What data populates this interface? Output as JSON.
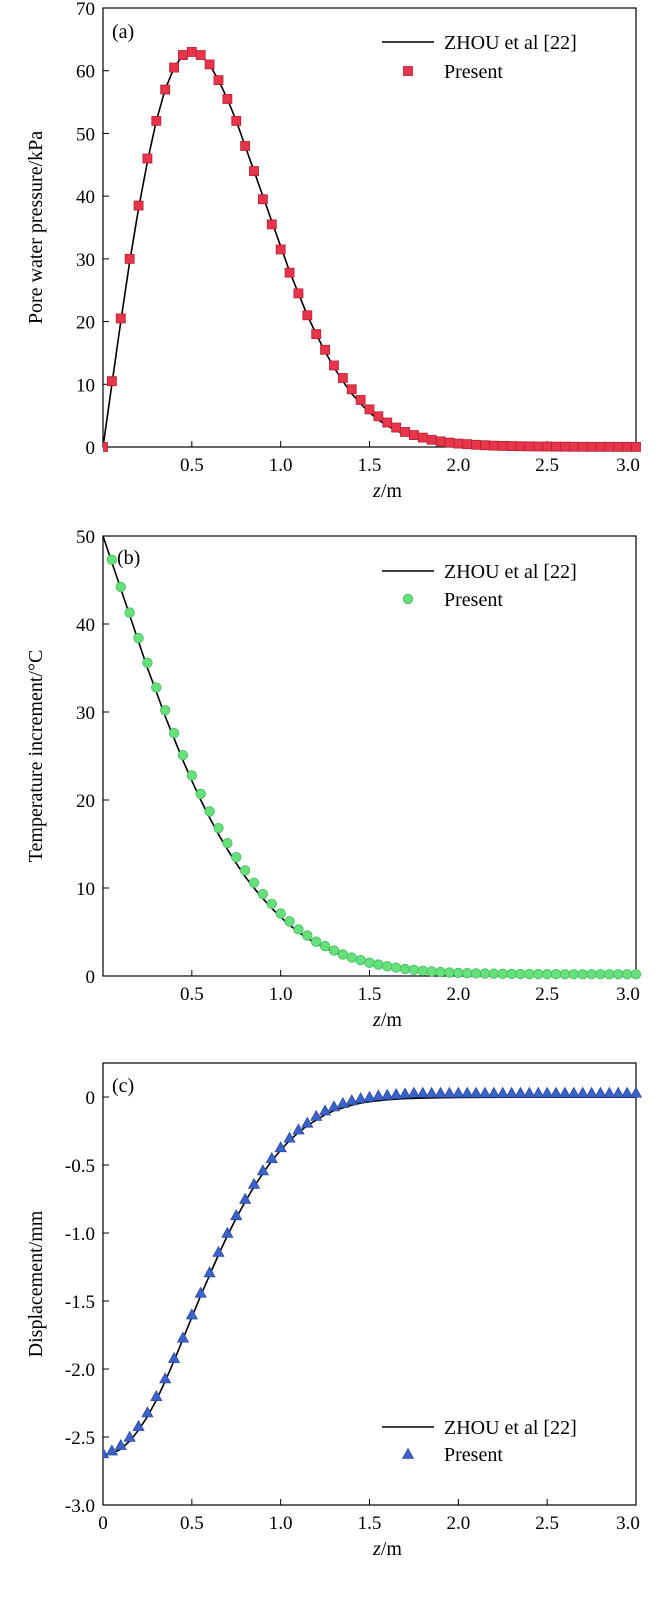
{
  "chart_data": [
    {
      "type": "line",
      "panel": "(a)",
      "xlabel_var": "z",
      "xlabel_unit": "/m",
      "ylabel": "Pore water pressure/kPa",
      "xlim": [
        0,
        3.0
      ],
      "ylim": [
        0,
        70
      ],
      "xticks": [
        0.5,
        1.0,
        1.5,
        2.0,
        2.5,
        3.0
      ],
      "xtick_labels": [
        "0.5",
        "1.0",
        "1.5",
        "2.0",
        "2.5",
        "3.0"
      ],
      "yticks": [
        0,
        10,
        20,
        30,
        40,
        50,
        60,
        70
      ],
      "ytick_labels": [
        "0",
        "10",
        "20",
        "30",
        "40",
        "50",
        "60",
        "70"
      ],
      "legend_position": "top-right",
      "series": [
        {
          "name": "ZHOU et al [22]",
          "style": "line",
          "color": "#000000",
          "x": [
            0,
            0.05,
            0.1,
            0.15,
            0.2,
            0.25,
            0.3,
            0.35,
            0.4,
            0.45,
            0.5,
            0.55,
            0.6,
            0.65,
            0.7,
            0.75,
            0.8,
            0.85,
            0.9,
            0.95,
            1.0,
            1.05,
            1.1,
            1.15,
            1.2,
            1.25,
            1.3,
            1.35,
            1.4,
            1.45,
            1.5,
            1.55,
            1.6,
            1.65,
            1.7,
            1.75,
            1.8,
            1.85,
            1.9,
            1.95,
            2.0,
            2.1,
            2.2,
            2.3,
            2.4,
            2.5,
            2.6,
            2.7,
            2.8,
            2.9,
            3.0
          ],
          "y": [
            0,
            10.0,
            20.0,
            29.5,
            38.0,
            45.5,
            52.0,
            57.0,
            60.5,
            62.5,
            63.0,
            62.5,
            61.0,
            58.5,
            55.5,
            52.0,
            48.0,
            44.0,
            40.0,
            36.0,
            32.0,
            28.0,
            24.5,
            21.0,
            18.0,
            15.2,
            12.7,
            10.5,
            8.5,
            6.9,
            5.5,
            4.3,
            3.4,
            2.6,
            2.0,
            1.5,
            1.15,
            0.85,
            0.65,
            0.5,
            0.35,
            0.2,
            0.12,
            0.08,
            0.05,
            0.03,
            0.02,
            0.01,
            0.01,
            0.01,
            0
          ]
        },
        {
          "name": "Present",
          "style": "marker",
          "marker": "square",
          "color": "#e8354a",
          "x": [
            0,
            0.05,
            0.1,
            0.15,
            0.2,
            0.25,
            0.3,
            0.35,
            0.4,
            0.45,
            0.5,
            0.55,
            0.6,
            0.65,
            0.7,
            0.75,
            0.8,
            0.85,
            0.9,
            0.95,
            1.0,
            1.05,
            1.1,
            1.15,
            1.2,
            1.25,
            1.3,
            1.35,
            1.4,
            1.45,
            1.5,
            1.55,
            1.6,
            1.65,
            1.7,
            1.75,
            1.8,
            1.85,
            1.9,
            1.95,
            2.0,
            2.05,
            2.1,
            2.15,
            2.2,
            2.25,
            2.3,
            2.35,
            2.4,
            2.45,
            2.5,
            2.55,
            2.6,
            2.65,
            2.7,
            2.75,
            2.8,
            2.85,
            2.9,
            2.95,
            3.0
          ],
          "y": [
            0,
            10.5,
            20.5,
            30.0,
            38.5,
            46.0,
            52.0,
            57.0,
            60.5,
            62.5,
            63.0,
            62.5,
            61.0,
            58.5,
            55.5,
            52.0,
            48.0,
            44.0,
            39.5,
            35.5,
            31.5,
            27.8,
            24.5,
            21.0,
            18.0,
            15.5,
            13.0,
            11.0,
            9.2,
            7.5,
            6.0,
            4.9,
            3.9,
            3.1,
            2.4,
            1.9,
            1.5,
            1.15,
            0.9,
            0.7,
            0.55,
            0.45,
            0.35,
            0.28,
            0.22,
            0.18,
            0.15,
            0.12,
            0.1,
            0.08,
            0.07,
            0.06,
            0.05,
            0.04,
            0.04,
            0.03,
            0.03,
            0.03,
            0.02,
            0.02,
            0.02
          ]
        }
      ]
    },
    {
      "type": "line",
      "panel": "(b)",
      "xlabel_var": "z",
      "xlabel_unit": "/m",
      "ylabel": "Temperature increment/°C",
      "xlim": [
        0,
        3.0
      ],
      "ylim": [
        0,
        50
      ],
      "xticks": [
        0.5,
        1.0,
        1.5,
        2.0,
        2.5,
        3.0
      ],
      "xtick_labels": [
        "0.5",
        "1.0",
        "1.5",
        "2.0",
        "2.5",
        "3.0"
      ],
      "yticks": [
        0,
        10,
        20,
        30,
        40,
        50
      ],
      "ytick_labels": [
        "0",
        "10",
        "20",
        "30",
        "40",
        "50"
      ],
      "legend_position": "top-right",
      "series": [
        {
          "name": "ZHOU et al [22]",
          "style": "line",
          "color": "#000000",
          "x": [
            0,
            0.05,
            0.1,
            0.15,
            0.2,
            0.25,
            0.3,
            0.35,
            0.4,
            0.45,
            0.5,
            0.55,
            0.6,
            0.65,
            0.7,
            0.75,
            0.8,
            0.85,
            0.9,
            0.95,
            1.0,
            1.05,
            1.1,
            1.15,
            1.2,
            1.25,
            1.3,
            1.35,
            1.4,
            1.45,
            1.5,
            1.6,
            1.7,
            1.8,
            1.9,
            2.0,
            2.2,
            2.4,
            2.6,
            2.8,
            3.0
          ],
          "y": [
            50,
            47.0,
            44.0,
            41.0,
            38.0,
            35.0,
            32.3,
            29.5,
            27.0,
            24.5,
            22.2,
            20.0,
            18.0,
            16.1,
            14.4,
            12.8,
            11.3,
            10.0,
            8.8,
            7.7,
            6.7,
            5.8,
            5.0,
            4.3,
            3.7,
            3.2,
            2.7,
            2.3,
            1.95,
            1.65,
            1.4,
            1.0,
            0.72,
            0.5,
            0.35,
            0.25,
            0.12,
            0.06,
            0.03,
            0.02,
            0.01
          ]
        },
        {
          "name": "Present",
          "style": "marker",
          "marker": "circle",
          "color": "#66e07a",
          "x": [
            0.05,
            0.1,
            0.15,
            0.2,
            0.25,
            0.3,
            0.35,
            0.4,
            0.45,
            0.5,
            0.55,
            0.6,
            0.65,
            0.7,
            0.75,
            0.8,
            0.85,
            0.9,
            0.95,
            1.0,
            1.05,
            1.1,
            1.15,
            1.2,
            1.25,
            1.3,
            1.35,
            1.4,
            1.45,
            1.5,
            1.55,
            1.6,
            1.65,
            1.7,
            1.75,
            1.8,
            1.85,
            1.9,
            1.95,
            2.0,
            2.05,
            2.1,
            2.15,
            2.2,
            2.25,
            2.3,
            2.35,
            2.4,
            2.45,
            2.5,
            2.55,
            2.6,
            2.65,
            2.7,
            2.75,
            2.8,
            2.85,
            2.9,
            2.95,
            3.0
          ],
          "y": [
            47.3,
            44.2,
            41.3,
            38.4,
            35.6,
            32.8,
            30.2,
            27.6,
            25.1,
            22.8,
            20.7,
            18.7,
            16.8,
            15.1,
            13.5,
            12.0,
            10.6,
            9.3,
            8.2,
            7.1,
            6.2,
            5.3,
            4.6,
            3.9,
            3.4,
            2.9,
            2.45,
            2.1,
            1.8,
            1.5,
            1.3,
            1.1,
            0.95,
            0.8,
            0.7,
            0.6,
            0.52,
            0.45,
            0.4,
            0.35,
            0.32,
            0.3,
            0.28,
            0.26,
            0.25,
            0.24,
            0.23,
            0.22,
            0.22,
            0.21,
            0.21,
            0.2,
            0.2,
            0.2,
            0.2,
            0.2,
            0.2,
            0.2,
            0.2,
            0.2
          ]
        }
      ]
    },
    {
      "type": "line",
      "panel": "(c)",
      "xlabel_var": "z",
      "xlabel_unit": "/m",
      "ylabel": "Displacement/mm",
      "xlim": [
        0,
        3.0
      ],
      "ylim": [
        -3.0,
        0.25
      ],
      "xticks": [
        0,
        0.5,
        1.0,
        1.5,
        2.0,
        2.5,
        3.0
      ],
      "xtick_labels": [
        "0",
        "0.5",
        "1.0",
        "1.5",
        "2.0",
        "2.5",
        "3.0"
      ],
      "yticks": [
        -3.0,
        -2.5,
        -2.0,
        -1.5,
        -1.0,
        -0.5,
        0
      ],
      "ytick_labels": [
        "-3.0",
        "-2.5",
        "-2.0",
        "-1.5",
        "-1.0",
        "-0.5",
        "0"
      ],
      "legend_position": "bottom-right",
      "series": [
        {
          "name": "ZHOU et al [22]",
          "style": "line",
          "color": "#000000",
          "x": [
            0,
            0.05,
            0.1,
            0.15,
            0.2,
            0.25,
            0.3,
            0.35,
            0.4,
            0.45,
            0.5,
            0.55,
            0.6,
            0.65,
            0.7,
            0.75,
            0.8,
            0.85,
            0.9,
            0.95,
            1.0,
            1.05,
            1.1,
            1.15,
            1.2,
            1.25,
            1.3,
            1.35,
            1.4,
            1.45,
            1.5,
            1.6,
            1.7,
            1.8,
            1.9,
            2.0,
            2.2,
            2.4,
            2.6,
            2.8,
            3.0
          ],
          "y": [
            -2.63,
            -2.62,
            -2.59,
            -2.53,
            -2.45,
            -2.35,
            -2.23,
            -2.09,
            -1.94,
            -1.78,
            -1.62,
            -1.46,
            -1.31,
            -1.16,
            -1.02,
            -0.89,
            -0.77,
            -0.66,
            -0.56,
            -0.47,
            -0.39,
            -0.32,
            -0.26,
            -0.21,
            -0.17,
            -0.13,
            -0.1,
            -0.08,
            -0.06,
            -0.045,
            -0.035,
            -0.02,
            -0.012,
            -0.008,
            -0.005,
            -0.003,
            -0.002,
            -0.001,
            -0.001,
            -0.001,
            -0.001
          ]
        },
        {
          "name": "Present",
          "style": "marker",
          "marker": "triangle",
          "color": "#3b62c9",
          "x": [
            0,
            0.05,
            0.1,
            0.15,
            0.2,
            0.25,
            0.3,
            0.35,
            0.4,
            0.45,
            0.5,
            0.55,
            0.6,
            0.65,
            0.7,
            0.75,
            0.8,
            0.85,
            0.9,
            0.95,
            1.0,
            1.05,
            1.1,
            1.15,
            1.2,
            1.25,
            1.3,
            1.35,
            1.4,
            1.45,
            1.5,
            1.55,
            1.6,
            1.65,
            1.7,
            1.75,
            1.8,
            1.85,
            1.9,
            1.95,
            2.0,
            2.05,
            2.1,
            2.15,
            2.2,
            2.25,
            2.3,
            2.35,
            2.4,
            2.45,
            2.5,
            2.55,
            2.6,
            2.65,
            2.7,
            2.75,
            2.8,
            2.85,
            2.9,
            2.95,
            3.0
          ],
          "y": [
            -2.62,
            -2.6,
            -2.56,
            -2.5,
            -2.42,
            -2.32,
            -2.2,
            -2.07,
            -1.92,
            -1.77,
            -1.6,
            -1.44,
            -1.29,
            -1.14,
            -1.0,
            -0.87,
            -0.75,
            -0.64,
            -0.54,
            -0.45,
            -0.37,
            -0.3,
            -0.24,
            -0.19,
            -0.14,
            -0.1,
            -0.07,
            -0.045,
            -0.025,
            -0.01,
            0.0,
            0.01,
            0.015,
            0.02,
            0.025,
            0.03,
            0.03,
            0.03,
            0.03,
            0.03,
            0.03,
            0.03,
            0.03,
            0.03,
            0.03,
            0.03,
            0.03,
            0.03,
            0.03,
            0.03,
            0.03,
            0.03,
            0.03,
            0.03,
            0.03,
            0.03,
            0.03,
            0.03,
            0.03,
            0.03,
            0.03
          ]
        }
      ]
    }
  ]
}
